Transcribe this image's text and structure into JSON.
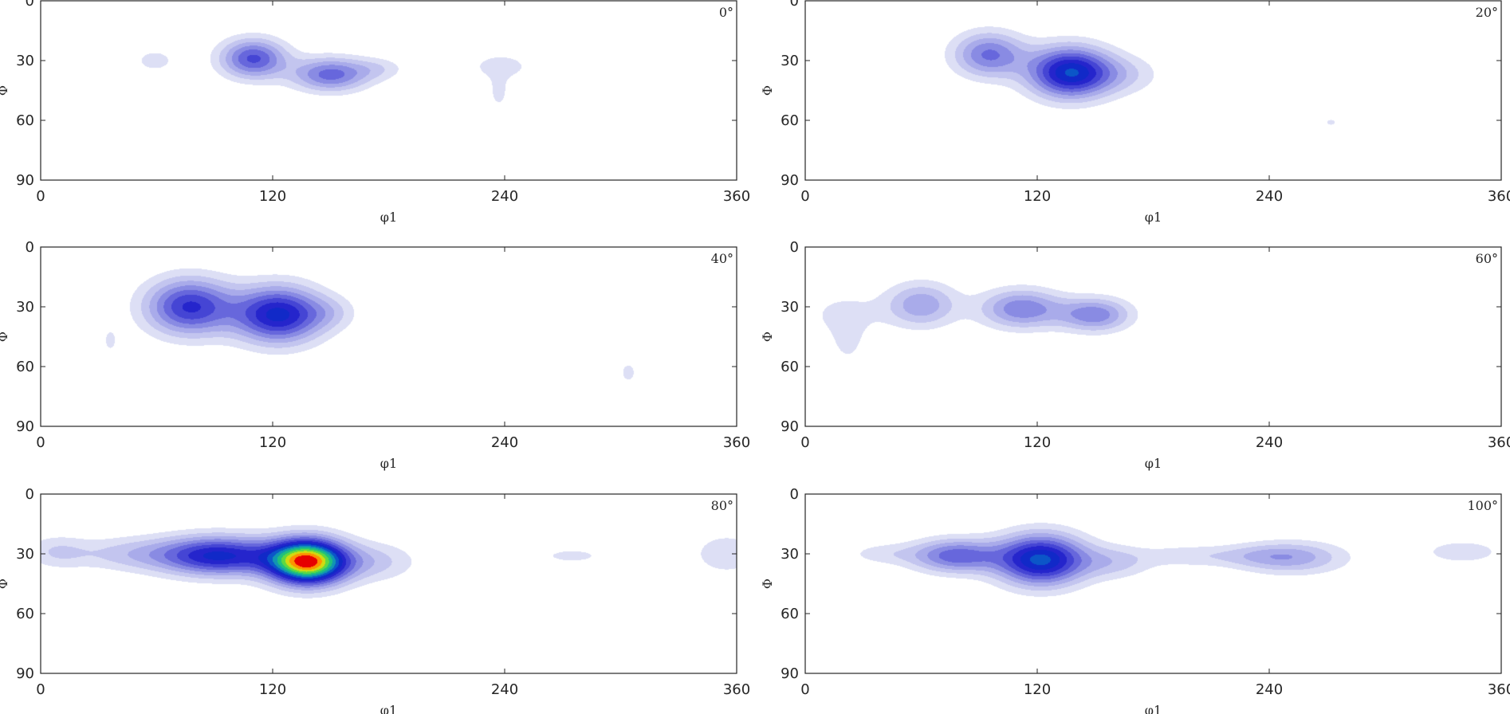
{
  "chart_data": [
    {
      "type": "heatmap",
      "section_label": "0°",
      "xlabel": "φ1",
      "ylabel": "Φ",
      "xlim": [
        0,
        360
      ],
      "ylim": [
        0,
        90
      ],
      "y_reversed": true,
      "xticks": [
        "0",
        "120",
        "240",
        "360"
      ],
      "yticks": [
        "0",
        "30",
        "60",
        "90"
      ],
      "peaks": [
        {
          "phi1": 59,
          "Phi": 30,
          "intensity": 1.0,
          "sx": 9,
          "sy": 5
        },
        {
          "phi1": 110,
          "Phi": 29,
          "intensity": 4.2,
          "sx": 12,
          "sy": 7
        },
        {
          "phi1": 150,
          "Phi": 37,
          "intensity": 3.7,
          "sx": 14,
          "sy": 6
        },
        {
          "phi1": 175,
          "Phi": 34,
          "intensity": 1.0,
          "sx": 10,
          "sy": 4
        },
        {
          "phi1": 238,
          "Phi": 33,
          "intensity": 1.0,
          "sx": 14,
          "sy": 6
        },
        {
          "phi1": 237,
          "Phi": 47,
          "intensity": 0.9,
          "sx": 4,
          "sy": 6
        }
      ]
    },
    {
      "type": "heatmap",
      "section_label": "20°",
      "xlabel": "φ1",
      "ylabel": "Φ",
      "xlim": [
        0,
        360
      ],
      "ylim": [
        0,
        90
      ],
      "y_reversed": true,
      "xticks": [
        "0",
        "120",
        "240",
        "360"
      ],
      "yticks": [
        "0",
        "30",
        "60",
        "90"
      ],
      "peaks": [
        {
          "phi1": 95,
          "Phi": 27,
          "intensity": 3.5,
          "sx": 13,
          "sy": 8
        },
        {
          "phi1": 137,
          "Phi": 36,
          "intensity": 6.0,
          "sx": 15,
          "sy": 9
        },
        {
          "phi1": 165,
          "Phi": 37,
          "intensity": 1.2,
          "sx": 14,
          "sy": 7
        },
        {
          "phi1": 272,
          "Phi": 61,
          "intensity": 0.9,
          "sx": 3,
          "sy": 2
        }
      ]
    },
    {
      "type": "heatmap",
      "section_label": "40°",
      "xlabel": "φ1",
      "ylabel": "Φ",
      "xlim": [
        0,
        360
      ],
      "ylim": [
        0,
        90
      ],
      "y_reversed": true,
      "xticks": [
        "0",
        "120",
        "240",
        "360"
      ],
      "yticks": [
        "0",
        "30",
        "60",
        "90"
      ],
      "peaks": [
        {
          "phi1": 77,
          "Phi": 30,
          "intensity": 4.8,
          "sx": 16,
          "sy": 10
        },
        {
          "phi1": 123,
          "Phi": 34,
          "intensity": 5.6,
          "sx": 16,
          "sy": 10
        },
        {
          "phi1": 150,
          "Phi": 33,
          "intensity": 1.0,
          "sx": 10,
          "sy": 6
        },
        {
          "phi1": 36,
          "Phi": 47,
          "intensity": 0.95,
          "sx": 3,
          "sy": 5
        },
        {
          "phi1": 304,
          "Phi": 63,
          "intensity": 0.95,
          "sx": 4,
          "sy": 5
        }
      ]
    },
    {
      "type": "heatmap",
      "section_label": "60°",
      "xlabel": "φ1",
      "ylabel": "Φ",
      "xlim": [
        0,
        360
      ],
      "ylim": [
        0,
        90
      ],
      "y_reversed": true,
      "xticks": [
        "0",
        "120",
        "240",
        "360"
      ],
      "yticks": [
        "0",
        "30",
        "60",
        "90"
      ],
      "peaks": [
        {
          "phi1": 60,
          "Phi": 29,
          "intensity": 2.6,
          "sx": 13,
          "sy": 8
        },
        {
          "phi1": 112,
          "Phi": 31,
          "intensity": 3.3,
          "sx": 15,
          "sy": 7
        },
        {
          "phi1": 150,
          "Phi": 34,
          "intensity": 3.2,
          "sx": 13,
          "sy": 6
        },
        {
          "phi1": 20,
          "Phi": 34,
          "intensity": 1.0,
          "sx": 14,
          "sy": 8
        },
        {
          "phi1": 22,
          "Phi": 48,
          "intensity": 0.9,
          "sx": 6,
          "sy": 8
        }
      ]
    },
    {
      "type": "heatmap",
      "section_label": "80°",
      "xlabel": "φ1",
      "ylabel": "Φ",
      "xlim": [
        0,
        360
      ],
      "ylim": [
        0,
        90
      ],
      "y_reversed": true,
      "xticks": [
        "0",
        "120",
        "240",
        "360"
      ],
      "yticks": [
        "0",
        "30",
        "60",
        "90"
      ],
      "peaks": [
        {
          "phi1": 92,
          "Phi": 31,
          "intensity": 5.5,
          "sx": 22,
          "sy": 7
        },
        {
          "phi1": 138,
          "Phi": 34,
          "intensity": 10.0,
          "sx": 14,
          "sy": 8
        },
        {
          "phi1": 172,
          "Phi": 34,
          "intensity": 1.6,
          "sx": 16,
          "sy": 7
        },
        {
          "phi1": 45,
          "Phi": 30,
          "intensity": 1.5,
          "sx": 20,
          "sy": 6
        },
        {
          "phi1": 8,
          "Phi": 29,
          "intensity": 1.3,
          "sx": 12,
          "sy": 6
        },
        {
          "phi1": 275,
          "Phi": 31,
          "intensity": 1.0,
          "sx": 13,
          "sy": 3
        },
        {
          "phi1": 355,
          "Phi": 30,
          "intensity": 1.4,
          "sx": 12,
          "sy": 7
        }
      ]
    },
    {
      "type": "heatmap",
      "section_label": "100°",
      "xlabel": "φ1",
      "ylabel": "Φ",
      "xlim": [
        0,
        360
      ],
      "ylim": [
        0,
        90
      ],
      "y_reversed": true,
      "xticks": [
        "0",
        "120",
        "240",
        "360"
      ],
      "yticks": [
        "0",
        "30",
        "60",
        "90"
      ],
      "peaks": [
        {
          "phi1": 78,
          "Phi": 31,
          "intensity": 3.8,
          "sx": 16,
          "sy": 6
        },
        {
          "phi1": 122,
          "Phi": 33,
          "intensity": 6.2,
          "sx": 16,
          "sy": 9
        },
        {
          "phi1": 160,
          "Phi": 34,
          "intensity": 1.6,
          "sx": 14,
          "sy": 6
        },
        {
          "phi1": 40,
          "Phi": 30,
          "intensity": 1.0,
          "sx": 14,
          "sy": 4
        },
        {
          "phi1": 195,
          "Phi": 31,
          "intensity": 0.95,
          "sx": 15,
          "sy": 4
        },
        {
          "phi1": 252,
          "Phi": 32,
          "intensity": 2.2,
          "sx": 20,
          "sy": 6
        },
        {
          "phi1": 230,
          "Phi": 31,
          "intensity": 1.0,
          "sx": 20,
          "sy": 4
        },
        {
          "phi1": 340,
          "Phi": 29,
          "intensity": 1.1,
          "sx": 17,
          "sy": 5
        }
      ]
    }
  ]
}
